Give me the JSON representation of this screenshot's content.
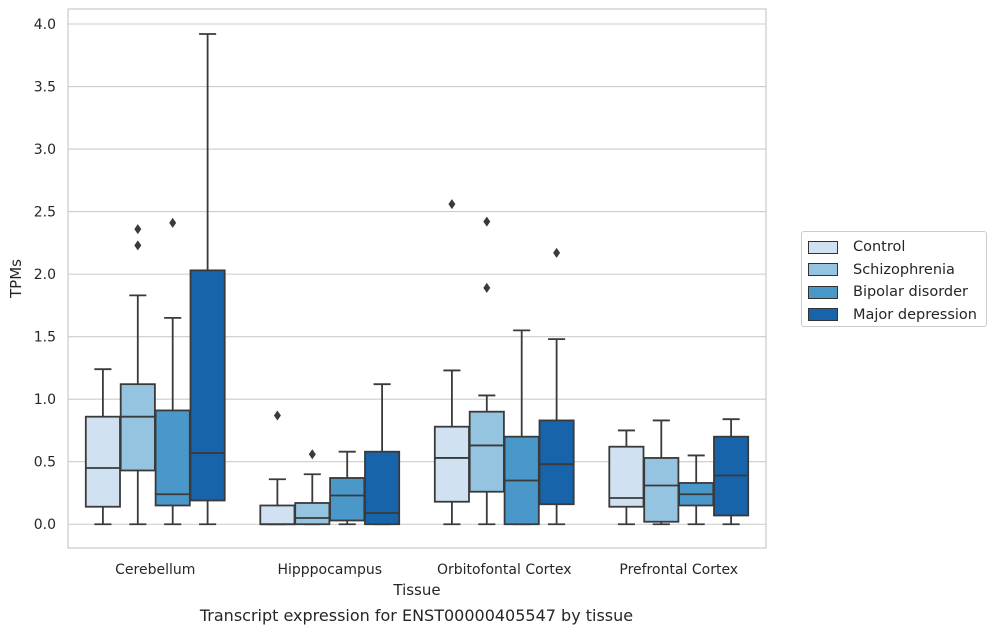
{
  "chart_data": {
    "type": "box",
    "title": "",
    "caption": "Transcript expression for ENST00000405547 by tissue",
    "xlabel": "Tissue",
    "ylabel": "TPMs",
    "ylim": [
      -0.19,
      4.12
    ],
    "yticks": [
      "0.0",
      "0.5",
      "1.0",
      "1.5",
      "2.0",
      "2.5",
      "3.0",
      "3.5",
      "4.0"
    ],
    "categories": [
      "Cerebellum",
      "Hipppocampus",
      "Orbitofontal Cortex",
      "Prefrontal Cortex"
    ],
    "grid": "horizontal",
    "legend_position": "right",
    "series": [
      {
        "name": "Control",
        "color": "#d0e1f2",
        "boxes": [
          {
            "whislo": 0.0,
            "q1": 0.14,
            "med": 0.45,
            "q3": 0.86,
            "whishi": 1.24,
            "fliers": []
          },
          {
            "whislo": 0.0,
            "q1": 0.0,
            "med": 0.0,
            "q3": 0.15,
            "whishi": 0.36,
            "fliers": [
              0.87
            ]
          },
          {
            "whislo": 0.0,
            "q1": 0.18,
            "med": 0.53,
            "q3": 0.78,
            "whishi": 1.23,
            "fliers": [
              2.56
            ]
          },
          {
            "whislo": 0.0,
            "q1": 0.14,
            "med": 0.21,
            "q3": 0.62,
            "whishi": 0.75,
            "fliers": []
          }
        ]
      },
      {
        "name": "Schizophrenia",
        "color": "#94c4df",
        "boxes": [
          {
            "whislo": 0.0,
            "q1": 0.43,
            "med": 0.86,
            "q3": 1.12,
            "whishi": 1.83,
            "fliers": [
              2.23,
              2.36
            ]
          },
          {
            "whislo": 0.0,
            "q1": 0.0,
            "med": 0.05,
            "q3": 0.17,
            "whishi": 0.4,
            "fliers": [
              0.56
            ]
          },
          {
            "whislo": 0.0,
            "q1": 0.26,
            "med": 0.63,
            "q3": 0.9,
            "whishi": 1.03,
            "fliers": [
              1.89,
              2.42
            ]
          },
          {
            "whislo": 0.0,
            "q1": 0.02,
            "med": 0.31,
            "q3": 0.53,
            "whishi": 0.83,
            "fliers": []
          }
        ]
      },
      {
        "name": "Bipolar disorder",
        "color": "#4a98c9",
        "boxes": [
          {
            "whislo": 0.0,
            "q1": 0.15,
            "med": 0.24,
            "q3": 0.91,
            "whishi": 1.65,
            "fliers": [
              2.41
            ]
          },
          {
            "whislo": 0.0,
            "q1": 0.03,
            "med": 0.23,
            "q3": 0.37,
            "whishi": 0.58,
            "fliers": []
          },
          {
            "whislo": 0.0,
            "q1": 0.0,
            "med": 0.35,
            "q3": 0.7,
            "whishi": 1.55,
            "fliers": []
          },
          {
            "whislo": 0.0,
            "q1": 0.15,
            "med": 0.24,
            "q3": 0.33,
            "whishi": 0.55,
            "fliers": []
          }
        ]
      },
      {
        "name": "Major depression",
        "color": "#1764ab",
        "boxes": [
          {
            "whislo": 0.0,
            "q1": 0.19,
            "med": 0.57,
            "q3": 2.03,
            "whishi": 3.92,
            "fliers": []
          },
          {
            "whislo": 0.0,
            "q1": 0.0,
            "med": 0.09,
            "q3": 0.58,
            "whishi": 1.12,
            "fliers": []
          },
          {
            "whislo": 0.0,
            "q1": 0.16,
            "med": 0.48,
            "q3": 0.83,
            "whishi": 1.48,
            "fliers": [
              2.17
            ]
          },
          {
            "whislo": 0.0,
            "q1": 0.07,
            "med": 0.39,
            "q3": 0.7,
            "whishi": 0.84,
            "fliers": []
          }
        ]
      }
    ]
  }
}
